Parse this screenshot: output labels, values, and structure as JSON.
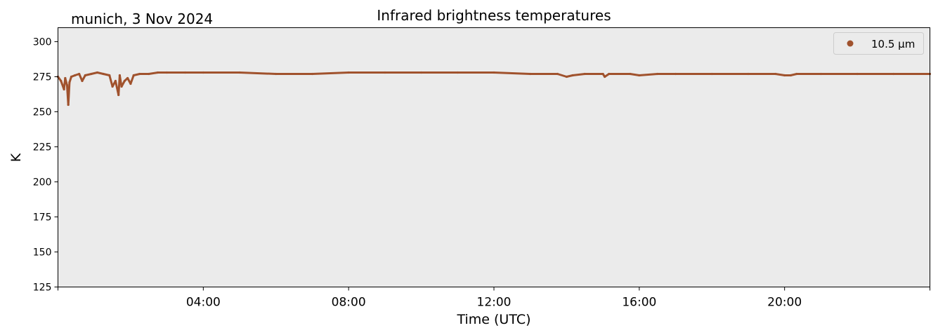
{
  "header": {
    "location_date": "munich, 3 Nov 2024"
  },
  "chart_data": {
    "type": "scatter",
    "title": "Infrared brightness temperatures",
    "xlabel": "Time (UTC)",
    "ylabel": "K",
    "xlim": [
      "00:00",
      "24:00"
    ],
    "ylim": [
      125,
      310
    ],
    "x_tick_labels": [
      "04:00",
      "08:00",
      "12:00",
      "16:00",
      "20:00"
    ],
    "y_tick_labels": [
      "125",
      "150",
      "175",
      "200",
      "225",
      "250",
      "275",
      "300"
    ],
    "legend_position": "top-right",
    "background_color": "#ebebeb",
    "grid": false,
    "series": [
      {
        "name": "10.5 µm",
        "color": "#a0522d",
        "points": [
          [
            "00:00",
            275
          ],
          [
            "00:05",
            272
          ],
          [
            "00:10",
            266
          ],
          [
            "00:12",
            274
          ],
          [
            "00:15",
            269
          ],
          [
            "00:17",
            255
          ],
          [
            "00:19",
            271
          ],
          [
            "00:22",
            275
          ],
          [
            "00:28",
            276
          ],
          [
            "00:35",
            277
          ],
          [
            "00:40",
            272
          ],
          [
            "00:45",
            276
          ],
          [
            "00:55",
            277
          ],
          [
            "01:05",
            278
          ],
          [
            "01:15",
            277
          ],
          [
            "01:25",
            276
          ],
          [
            "01:30",
            268
          ],
          [
            "01:35",
            272
          ],
          [
            "01:40",
            262
          ],
          [
            "01:42",
            276
          ],
          [
            "01:45",
            268
          ],
          [
            "01:50",
            272
          ],
          [
            "01:55",
            274
          ],
          [
            "02:00",
            270
          ],
          [
            "02:05",
            276
          ],
          [
            "02:15",
            277
          ],
          [
            "02:30",
            277
          ],
          [
            "02:45",
            278
          ],
          [
            "03:00",
            278
          ],
          [
            "03:30",
            278
          ],
          [
            "04:00",
            278
          ],
          [
            "05:00",
            278
          ],
          [
            "06:00",
            277
          ],
          [
            "07:00",
            277
          ],
          [
            "08:00",
            278
          ],
          [
            "09:00",
            278
          ],
          [
            "10:00",
            278
          ],
          [
            "11:00",
            278
          ],
          [
            "12:00",
            278
          ],
          [
            "13:00",
            277
          ],
          [
            "13:45",
            277
          ],
          [
            "14:00",
            275
          ],
          [
            "14:10",
            276
          ],
          [
            "14:30",
            277
          ],
          [
            "15:00",
            277
          ],
          [
            "15:03",
            275
          ],
          [
            "15:10",
            277
          ],
          [
            "15:45",
            277
          ],
          [
            "16:00",
            276
          ],
          [
            "16:30",
            277
          ],
          [
            "17:00",
            277
          ],
          [
            "18:00",
            277
          ],
          [
            "19:00",
            277
          ],
          [
            "19:45",
            277
          ],
          [
            "20:00",
            276
          ],
          [
            "20:10",
            276
          ],
          [
            "20:20",
            277
          ],
          [
            "21:00",
            277
          ],
          [
            "22:00",
            277
          ],
          [
            "23:00",
            277
          ],
          [
            "24:00",
            277
          ]
        ]
      }
    ]
  }
}
